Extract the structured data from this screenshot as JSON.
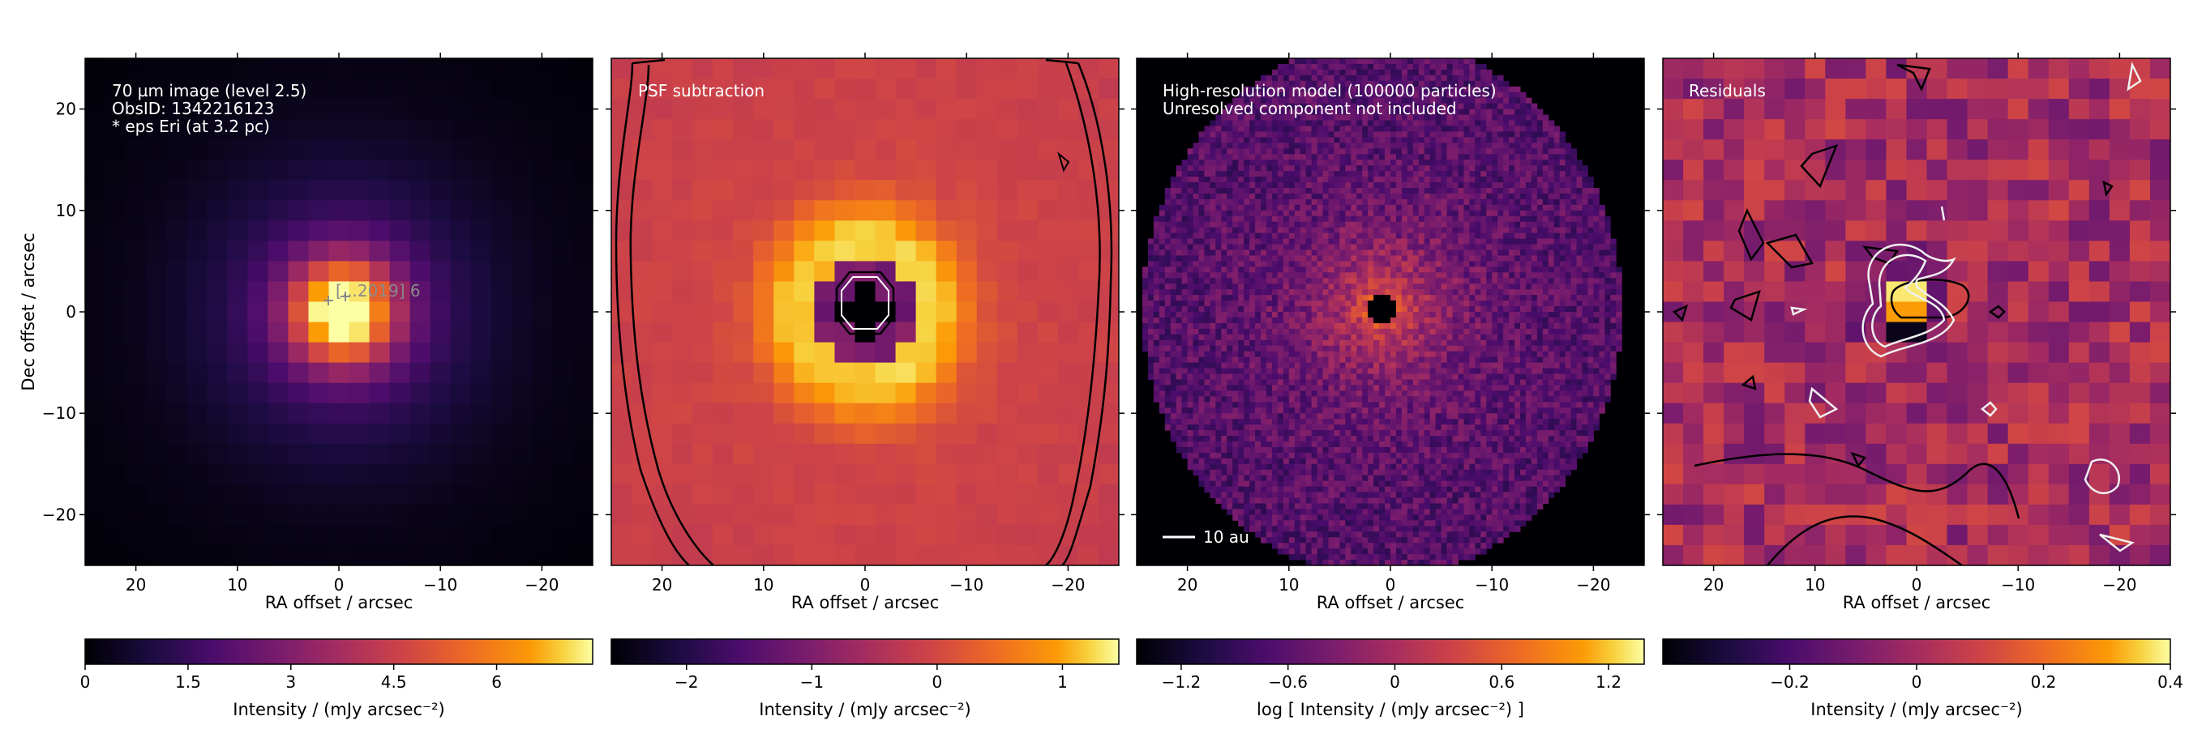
{
  "chart_data": [
    {
      "type": "heatmap",
      "panel": "observed-image",
      "annotations": [
        "70 µm image (level 2.5)",
        "ObsID: 1342216123",
        "* eps Eri (at 3.2 pc)"
      ],
      "marker_label": "[...2019] 6",
      "xlabel": "RA offset / arcsec",
      "ylabel": "Dec offset / arcsec",
      "xlim": [
        25,
        -25
      ],
      "ylim": [
        -25,
        25
      ],
      "xticks": [
        20,
        10,
        0,
        -10,
        -20
      ],
      "yticks": [
        -20,
        -10,
        0,
        10,
        20
      ],
      "colorbar": {
        "label": "Intensity / (mJy arcsec⁻²)",
        "range": [
          0,
          7.4
        ],
        "ticks": [
          0,
          1.5,
          3,
          4.5,
          6
        ],
        "colormap": "inferno"
      }
    },
    {
      "type": "heatmap",
      "panel": "psf-subtraction",
      "annotations": [
        "PSF subtraction"
      ],
      "xlabel": "RA offset / arcsec",
      "xlim": [
        25,
        -25
      ],
      "ylim": [
        -25,
        25
      ],
      "xticks": [
        20,
        10,
        0,
        -10,
        -20
      ],
      "colorbar": {
        "label": "Intensity / (mJy arcsec⁻²)",
        "range": [
          -2.6,
          1.45
        ],
        "ticks": [
          -2,
          -1,
          0,
          1
        ],
        "colormap": "inferno"
      }
    },
    {
      "type": "heatmap",
      "panel": "high-resolution-model",
      "annotations": [
        "High-resolution model (100000 particles)",
        "Unresolved component not included"
      ],
      "scalebar_label": "10 au",
      "xlabel": "RA offset / arcsec",
      "xlim": [
        25,
        -25
      ],
      "ylim": [
        -25,
        25
      ],
      "xticks": [
        20,
        10,
        0,
        -10,
        -20
      ],
      "colorbar": {
        "label": "log [ Intensity / (mJy arcsec⁻²) ]",
        "range": [
          -1.45,
          1.4
        ],
        "ticks": [
          -1.2,
          -0.6,
          0,
          0.6,
          1.2
        ],
        "colormap": "inferno"
      }
    },
    {
      "type": "heatmap",
      "panel": "residuals",
      "annotations": [
        "Residuals"
      ],
      "xlabel": "RA offset / arcsec",
      "xlim": [
        25,
        -25
      ],
      "ylim": [
        -25,
        25
      ],
      "xticks": [
        20,
        10,
        0,
        -10,
        -20
      ],
      "colorbar": {
        "label": "Intensity / (mJy arcsec⁻²)",
        "range": [
          -0.4,
          0.4
        ],
        "ticks": [
          -0.2,
          0,
          0.2,
          0.4
        ],
        "colormap": "inferno"
      }
    }
  ],
  "colors": {
    "contour_dark": "#000000",
    "contour_light": "#f0f0f0",
    "annotation_text": "#ffffff",
    "marker": "#8a8a8a"
  }
}
